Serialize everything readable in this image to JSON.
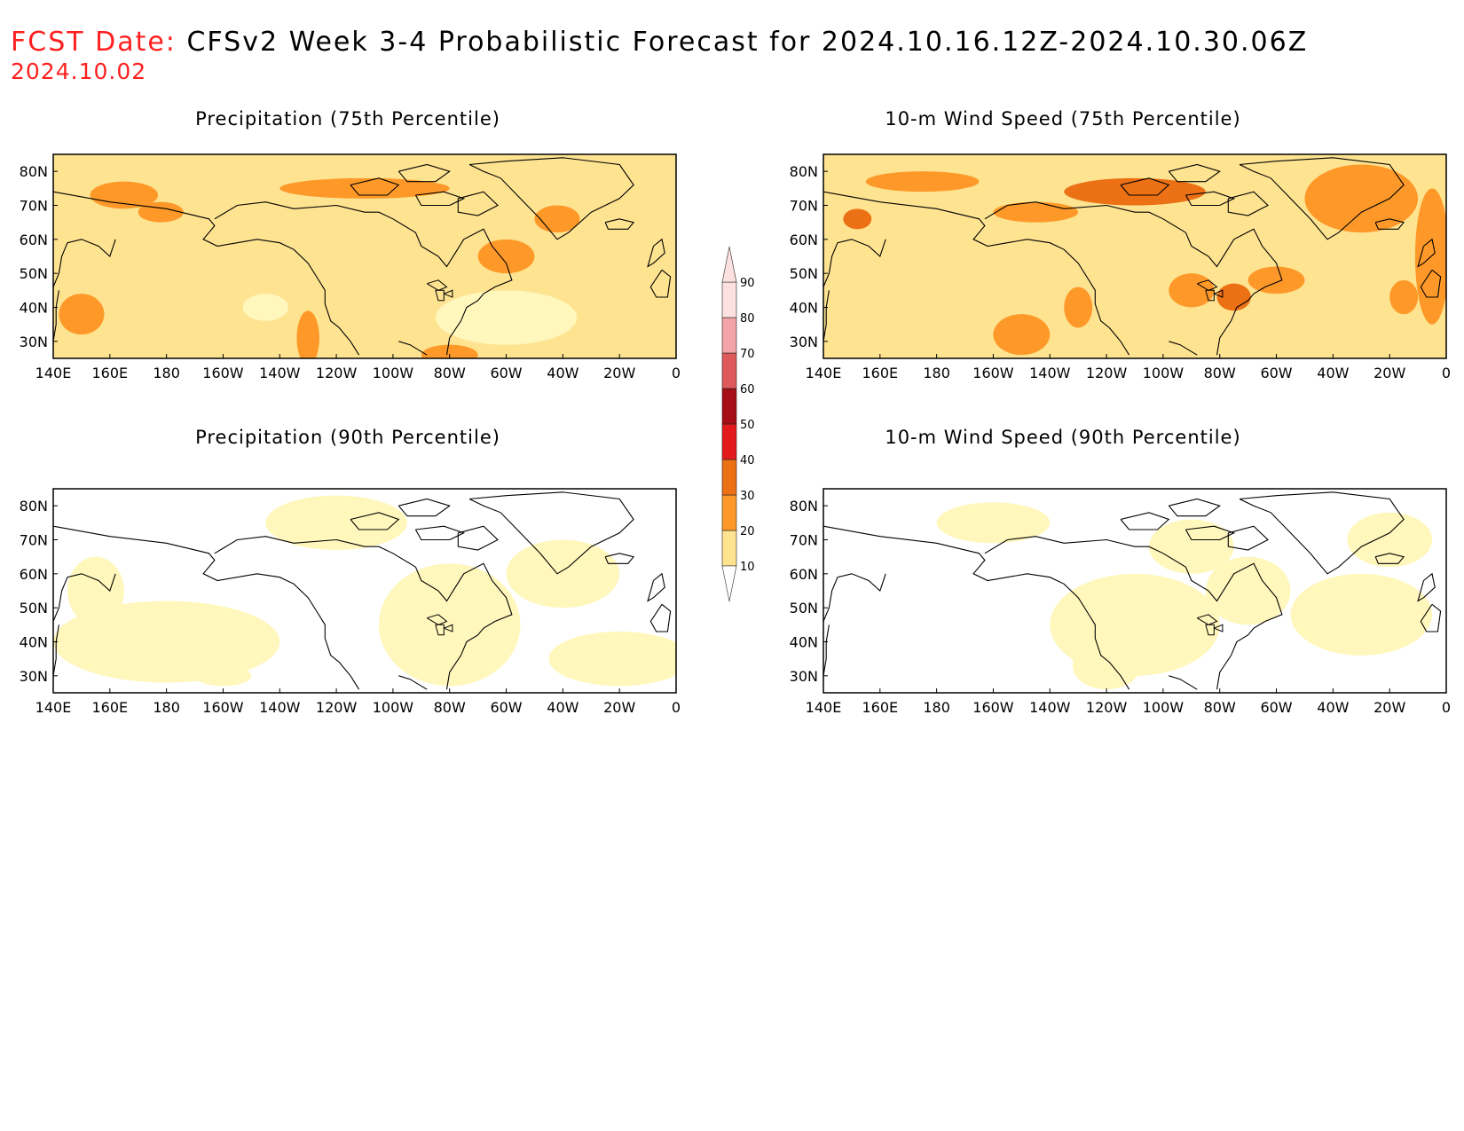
{
  "header": {
    "fcst_label": "FCST Date:",
    "title": "CFSv2 Week 3-4 Probabilistic Forecast for 2024.10.16.12Z-2024.10.30.06Z",
    "fcst_date": "2024.10.02"
  },
  "panels": [
    {
      "title": "Precipitation (75th Percentile)",
      "variable": "precipitation",
      "percentile": 75
    },
    {
      "title": "10-m Wind Speed (75th Percentile)",
      "variable": "wind",
      "percentile": 75
    },
    {
      "title": "Precipitation (90th Percentile)",
      "variable": "precipitation",
      "percentile": 90
    },
    {
      "title": "10-m Wind Speed (90th Percentile)",
      "variable": "wind",
      "percentile": 90
    }
  ],
  "axes": {
    "lon_labels": [
      "140E",
      "160E",
      "180",
      "160W",
      "140W",
      "120W",
      "100W",
      "80W",
      "60W",
      "40W",
      "20W",
      "0"
    ],
    "lat_labels": [
      "80N",
      "70N",
      "60N",
      "50N",
      "40N",
      "30N"
    ],
    "lat_range": [
      25,
      85
    ],
    "lon_range": [
      140,
      360
    ]
  },
  "colorbar": {
    "levels": [
      "10",
      "20",
      "30",
      "40",
      "50",
      "60",
      "70",
      "80",
      "90"
    ],
    "colors": [
      "#fff7bc",
      "#fee391",
      "#fe9929",
      "#ec7014",
      "#e31a1c",
      "#a50f15",
      "#de5a5a",
      "#f4a3a8",
      "#fde0e0"
    ]
  }
}
